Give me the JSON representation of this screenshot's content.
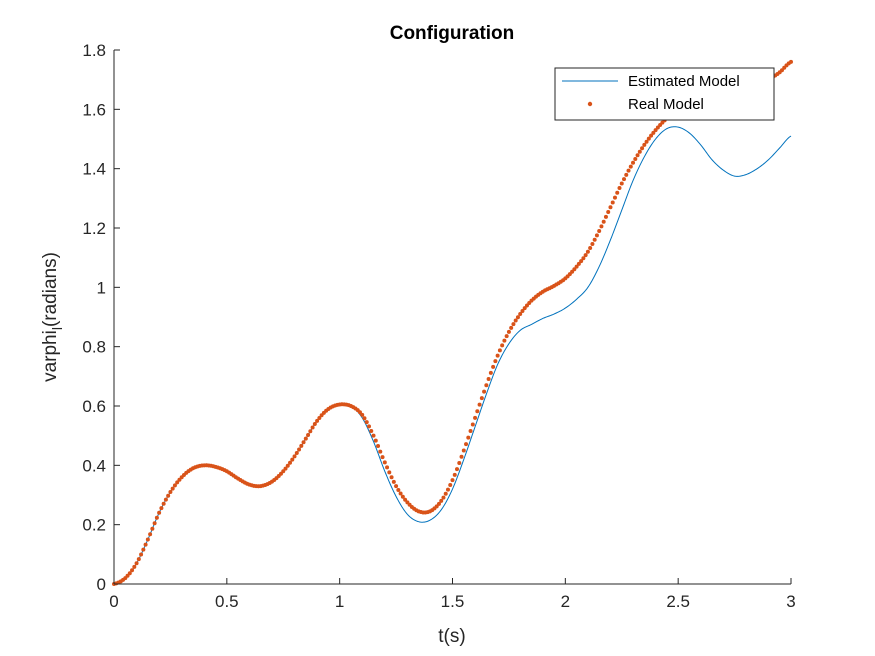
{
  "chart_data": {
    "type": "line",
    "title": "Configuration",
    "xlabel": "t(s)",
    "ylabel": "varphi",
    "ylabel_subscript": "l",
    "ylabel_suffix": "(radians)",
    "xlim": [
      0,
      3
    ],
    "ylim": [
      0,
      1.8
    ],
    "xticks": [
      0,
      0.5,
      1,
      1.5,
      2,
      2.5,
      3
    ],
    "xtick_labels": [
      "0",
      "0.5",
      "1",
      "1.5",
      "2",
      "2.5",
      "3"
    ],
    "yticks": [
      0,
      0.2,
      0.4,
      0.6,
      0.8,
      1,
      1.2,
      1.4,
      1.6,
      1.8
    ],
    "ytick_labels": [
      "0",
      "0.2",
      "0.4",
      "0.6",
      "0.8",
      "1",
      "1.2",
      "1.4",
      "1.6",
      "1.8"
    ],
    "grid": false,
    "legend_position": "top-right",
    "series": [
      {
        "name": "Estimated Model",
        "style": "line",
        "color": "#0072BD",
        "x": [
          0,
          0.05,
          0.1,
          0.15,
          0.2,
          0.25,
          0.3,
          0.35,
          0.4,
          0.45,
          0.5,
          0.55,
          0.6,
          0.65,
          0.7,
          0.75,
          0.8,
          0.85,
          0.9,
          0.95,
          1.0,
          1.05,
          1.1,
          1.15,
          1.2,
          1.25,
          1.3,
          1.35,
          1.4,
          1.45,
          1.5,
          1.55,
          1.6,
          1.65,
          1.7,
          1.75,
          1.8,
          1.85,
          1.9,
          1.95,
          2.0,
          2.05,
          2.1,
          2.15,
          2.2,
          2.25,
          2.3,
          2.35,
          2.4,
          2.45,
          2.5,
          2.55,
          2.6,
          2.65,
          2.7,
          2.75,
          2.8,
          2.85,
          2.9,
          2.95,
          3.0
        ],
        "y": [
          0,
          0.02,
          0.07,
          0.15,
          0.24,
          0.31,
          0.36,
          0.39,
          0.4,
          0.395,
          0.38,
          0.355,
          0.335,
          0.33,
          0.345,
          0.38,
          0.43,
          0.49,
          0.55,
          0.59,
          0.605,
          0.6,
          0.56,
          0.48,
          0.38,
          0.295,
          0.235,
          0.21,
          0.215,
          0.25,
          0.32,
          0.42,
          0.53,
          0.64,
          0.74,
          0.81,
          0.855,
          0.875,
          0.895,
          0.91,
          0.93,
          0.96,
          1.0,
          1.07,
          1.16,
          1.26,
          1.36,
          1.44,
          1.5,
          1.535,
          1.54,
          1.52,
          1.48,
          1.43,
          1.395,
          1.375,
          1.38,
          1.4,
          1.43,
          1.47,
          1.51
        ]
      },
      {
        "name": "Real Model",
        "style": "dots",
        "color": "#D95319",
        "x": [
          0,
          0.05,
          0.1,
          0.15,
          0.2,
          0.25,
          0.3,
          0.35,
          0.4,
          0.45,
          0.5,
          0.55,
          0.6,
          0.65,
          0.7,
          0.75,
          0.8,
          0.85,
          0.9,
          0.95,
          1.0,
          1.05,
          1.1,
          1.15,
          1.2,
          1.25,
          1.3,
          1.35,
          1.4,
          1.45,
          1.5,
          1.55,
          1.6,
          1.65,
          1.7,
          1.75,
          1.8,
          1.85,
          1.9,
          1.95,
          2.0,
          2.05,
          2.1,
          2.15,
          2.2,
          2.25,
          2.3,
          2.35,
          2.4,
          2.45,
          2.5,
          2.55,
          2.6,
          2.65,
          2.7,
          2.75,
          2.8,
          2.85,
          2.9,
          2.95,
          3.0
        ],
        "y": [
          0,
          0.02,
          0.07,
          0.15,
          0.24,
          0.31,
          0.36,
          0.39,
          0.4,
          0.395,
          0.38,
          0.355,
          0.335,
          0.33,
          0.345,
          0.38,
          0.43,
          0.49,
          0.55,
          0.59,
          0.605,
          0.6,
          0.57,
          0.5,
          0.41,
          0.33,
          0.275,
          0.245,
          0.245,
          0.28,
          0.35,
          0.45,
          0.56,
          0.67,
          0.77,
          0.85,
          0.91,
          0.955,
          0.985,
          1.005,
          1.03,
          1.07,
          1.12,
          1.19,
          1.27,
          1.35,
          1.42,
          1.48,
          1.53,
          1.57,
          1.6,
          1.62,
          1.63,
          1.64,
          1.645,
          1.65,
          1.66,
          1.68,
          1.7,
          1.725,
          1.76
        ]
      }
    ]
  }
}
